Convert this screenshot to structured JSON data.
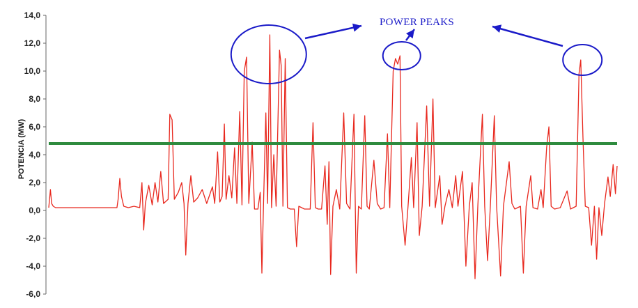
{
  "chart_data": {
    "type": "line",
    "title": "",
    "xlabel": "",
    "ylabel": "POTENCIA (MW)",
    "ylim": [
      -6,
      14
    ],
    "yticks": [
      "14,0",
      "12,0",
      "10,0",
      "8,0",
      "6,0",
      "4,0",
      "2,0",
      "0,0",
      "-2,0",
      "-4,0",
      "-6,0"
    ],
    "grid": false,
    "colors": {
      "series": "#e8281e",
      "threshold": "#2e8b3e",
      "annotation": "#1a1ac8"
    },
    "threshold": {
      "value": 4.8
    },
    "annotations": [
      {
        "text": "POWER PEAKS"
      }
    ],
    "highlighted_peaks": [
      {
        "x": 0.387,
        "y": 11.2
      },
      {
        "x": 0.621,
        "y": 11.1
      },
      {
        "x": 0.939,
        "y": 10.8
      }
    ],
    "series": [
      {
        "values": [
          [
            0.0,
            0.2
          ],
          [
            0.003,
            1.5
          ],
          [
            0.005,
            0.5
          ],
          [
            0.008,
            0.3
          ],
          [
            0.012,
            0.2
          ],
          [
            0.03,
            0.2
          ],
          [
            0.06,
            0.2
          ],
          [
            0.09,
            0.2
          ],
          [
            0.12,
            0.2
          ],
          [
            0.122,
            0.8
          ],
          [
            0.125,
            2.3
          ],
          [
            0.128,
            1.0
          ],
          [
            0.132,
            0.3
          ],
          [
            0.14,
            0.2
          ],
          [
            0.15,
            0.3
          ],
          [
            0.16,
            0.2
          ],
          [
            0.164,
            2.0
          ],
          [
            0.167,
            -1.4
          ],
          [
            0.17,
            0.5
          ],
          [
            0.176,
            1.8
          ],
          [
            0.182,
            0.4
          ],
          [
            0.187,
            2.0
          ],
          [
            0.192,
            0.6
          ],
          [
            0.197,
            2.8
          ],
          [
            0.202,
            0.5
          ],
          [
            0.21,
            0.8
          ],
          [
            0.213,
            6.9
          ],
          [
            0.217,
            6.5
          ],
          [
            0.221,
            0.8
          ],
          [
            0.228,
            1.3
          ],
          [
            0.234,
            2.0
          ],
          [
            0.238,
            0.5
          ],
          [
            0.241,
            -3.2
          ],
          [
            0.245,
            0.5
          ],
          [
            0.25,
            2.5
          ],
          [
            0.255,
            0.6
          ],
          [
            0.262,
            0.9
          ],
          [
            0.27,
            1.5
          ],
          [
            0.278,
            0.5
          ],
          [
            0.288,
            1.7
          ],
          [
            0.292,
            0.5
          ],
          [
            0.297,
            4.2
          ],
          [
            0.301,
            0.6
          ],
          [
            0.305,
            1.0
          ],
          [
            0.309,
            6.2
          ],
          [
            0.312,
            0.8
          ],
          [
            0.317,
            2.5
          ],
          [
            0.322,
            0.9
          ],
          [
            0.327,
            4.5
          ],
          [
            0.331,
            0.5
          ],
          [
            0.336,
            7.1
          ],
          [
            0.34,
            0.4
          ],
          [
            0.344,
            10.0
          ],
          [
            0.348,
            11.0
          ],
          [
            0.352,
            0.5
          ],
          [
            0.358,
            4.9
          ],
          [
            0.362,
            0.1
          ],
          [
            0.368,
            0.1
          ],
          [
            0.372,
            1.3
          ],
          [
            0.375,
            -4.5
          ],
          [
            0.378,
            0.6
          ],
          [
            0.382,
            7.0
          ],
          [
            0.385,
            0.5
          ],
          [
            0.389,
            12.6
          ],
          [
            0.392,
            0.2
          ],
          [
            0.396,
            4.0
          ],
          [
            0.4,
            0.3
          ],
          [
            0.406,
            11.5
          ],
          [
            0.409,
            10.4
          ],
          [
            0.412,
            0.3
          ],
          [
            0.416,
            10.9
          ],
          [
            0.42,
            0.2
          ],
          [
            0.425,
            0.1
          ],
          [
            0.432,
            0.1
          ],
          [
            0.436,
            -2.6
          ],
          [
            0.44,
            0.3
          ],
          [
            0.45,
            0.1
          ],
          [
            0.46,
            0.1
          ],
          [
            0.465,
            6.3
          ],
          [
            0.469,
            0.2
          ],
          [
            0.474,
            0.1
          ],
          [
            0.48,
            0.1
          ],
          [
            0.486,
            3.2
          ],
          [
            0.49,
            -1.0
          ],
          [
            0.493,
            3.5
          ],
          [
            0.496,
            -4.6
          ],
          [
            0.5,
            0.3
          ],
          [
            0.506,
            1.5
          ],
          [
            0.512,
            0.1
          ],
          [
            0.519,
            7.0
          ],
          [
            0.524,
            0.5
          ],
          [
            0.53,
            0.1
          ],
          [
            0.537,
            6.9
          ],
          [
            0.541,
            -4.5
          ],
          [
            0.545,
            0.3
          ],
          [
            0.55,
            0.1
          ],
          [
            0.556,
            6.8
          ],
          [
            0.56,
            0.3
          ],
          [
            0.564,
            0.1
          ],
          [
            0.572,
            3.6
          ],
          [
            0.578,
            0.5
          ],
          [
            0.584,
            0.1
          ],
          [
            0.59,
            0.2
          ],
          [
            0.596,
            5.5
          ],
          [
            0.6,
            0.2
          ],
          [
            0.606,
            10.0
          ],
          [
            0.61,
            10.9
          ],
          [
            0.614,
            10.5
          ],
          [
            0.618,
            11.1
          ],
          [
            0.621,
            0.3
          ],
          [
            0.627,
            -2.5
          ],
          [
            0.632,
            0.2
          ],
          [
            0.638,
            3.8
          ],
          [
            0.642,
            0.2
          ],
          [
            0.648,
            6.3
          ],
          [
            0.652,
            -1.8
          ],
          [
            0.657,
            0.3
          ],
          [
            0.665,
            7.5
          ],
          [
            0.67,
            0.3
          ],
          [
            0.676,
            8.0
          ],
          [
            0.68,
            0.2
          ],
          [
            0.688,
            2.5
          ],
          [
            0.692,
            -1.0
          ],
          [
            0.697,
            0.3
          ],
          [
            0.704,
            1.5
          ],
          [
            0.71,
            0.2
          ],
          [
            0.716,
            2.5
          ],
          [
            0.72,
            0.3
          ],
          [
            0.728,
            2.8
          ],
          [
            0.734,
            -4.0
          ],
          [
            0.74,
            0.3
          ],
          [
            0.745,
            2.0
          ],
          [
            0.75,
            -4.9
          ],
          [
            0.755,
            0.4
          ],
          [
            0.763,
            6.9
          ],
          [
            0.767,
            0.3
          ],
          [
            0.772,
            -3.6
          ],
          [
            0.777,
            0.3
          ],
          [
            0.784,
            6.8
          ],
          [
            0.788,
            0.3
          ],
          [
            0.795,
            -4.7
          ],
          [
            0.8,
            0.3
          ],
          [
            0.81,
            3.5
          ],
          [
            0.815,
            0.5
          ],
          [
            0.82,
            0.1
          ],
          [
            0.83,
            0.3
          ],
          [
            0.835,
            -4.5
          ],
          [
            0.84,
            0.3
          ],
          [
            0.848,
            2.5
          ],
          [
            0.852,
            0.2
          ],
          [
            0.86,
            0.1
          ],
          [
            0.866,
            1.5
          ],
          [
            0.87,
            0.2
          ],
          [
            0.876,
            4.5
          ],
          [
            0.88,
            6.0
          ],
          [
            0.884,
            0.3
          ],
          [
            0.89,
            0.1
          ],
          [
            0.9,
            0.2
          ],
          [
            0.912,
            1.4
          ],
          [
            0.918,
            0.1
          ],
          [
            0.928,
            0.3
          ],
          [
            0.933,
            9.8
          ],
          [
            0.936,
            10.8
          ],
          [
            0.94,
            5.2
          ],
          [
            0.944,
            0.3
          ],
          [
            0.95,
            0.2
          ],
          [
            0.955,
            -2.5
          ],
          [
            0.96,
            0.3
          ],
          [
            0.964,
            -3.5
          ],
          [
            0.968,
            0.2
          ],
          [
            0.973,
            -1.8
          ],
          [
            0.978,
            0.5
          ],
          [
            0.984,
            2.4
          ],
          [
            0.988,
            1.0
          ],
          [
            0.993,
            3.3
          ],
          [
            0.997,
            1.2
          ],
          [
            1.0,
            3.2
          ]
        ]
      }
    ]
  }
}
